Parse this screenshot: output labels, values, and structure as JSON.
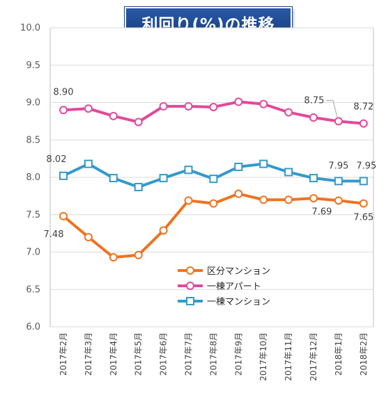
{
  "chart_data": {
    "type": "line",
    "title": "利回り(%)の推移",
    "categories": [
      "2017年2月",
      "2017年3月",
      "2017年4月",
      "2017年5月",
      "2017年6月",
      "2017年7月",
      "2017年8月",
      "2017年9月",
      "2017年10月",
      "2017年11月",
      "2017年12月",
      "2018年1月",
      "2018年2月"
    ],
    "ylim": [
      6.0,
      10.0
    ],
    "yticks": [
      "6.0",
      "6.5",
      "7.0",
      "7.5",
      "8.0",
      "8.5",
      "9.0",
      "9.5",
      "10.0"
    ],
    "grid": "horizontal",
    "legend_position": "center-bottom",
    "series": [
      {
        "name": "区分マンション",
        "color": "#ee7320",
        "marker": "circle",
        "values": [
          7.48,
          7.2,
          6.93,
          6.96,
          7.29,
          7.69,
          7.65,
          7.78,
          7.7,
          7.7,
          7.72,
          7.69,
          7.65
        ]
      },
      {
        "name": "一棟アパート",
        "color": "#e2489c",
        "marker": "circle",
        "values": [
          8.9,
          8.92,
          8.82,
          8.74,
          8.95,
          8.95,
          8.94,
          9.01,
          8.98,
          8.87,
          8.8,
          8.75,
          8.72
        ]
      },
      {
        "name": "一棟マンション",
        "color": "#3399cc",
        "marker": "square",
        "values": [
          8.02,
          8.18,
          7.99,
          7.87,
          7.99,
          8.1,
          7.98,
          8.14,
          8.18,
          8.07,
          7.99,
          7.95,
          7.95
        ]
      }
    ],
    "annotations": [
      {
        "series": 1,
        "index": 0,
        "label": "8.90"
      },
      {
        "series": 1,
        "index": 11,
        "label": "8.75"
      },
      {
        "series": 1,
        "index": 12,
        "label": "8.72"
      },
      {
        "series": 2,
        "index": 0,
        "label": "8.02"
      },
      {
        "series": 2,
        "index": 11,
        "label": "7.95"
      },
      {
        "series": 2,
        "index": 12,
        "label": "7.95"
      },
      {
        "series": 0,
        "index": 0,
        "label": "7.48"
      },
      {
        "series": 0,
        "index": 11,
        "label": "7.69"
      },
      {
        "series": 0,
        "index": 12,
        "label": "7.65"
      }
    ]
  }
}
